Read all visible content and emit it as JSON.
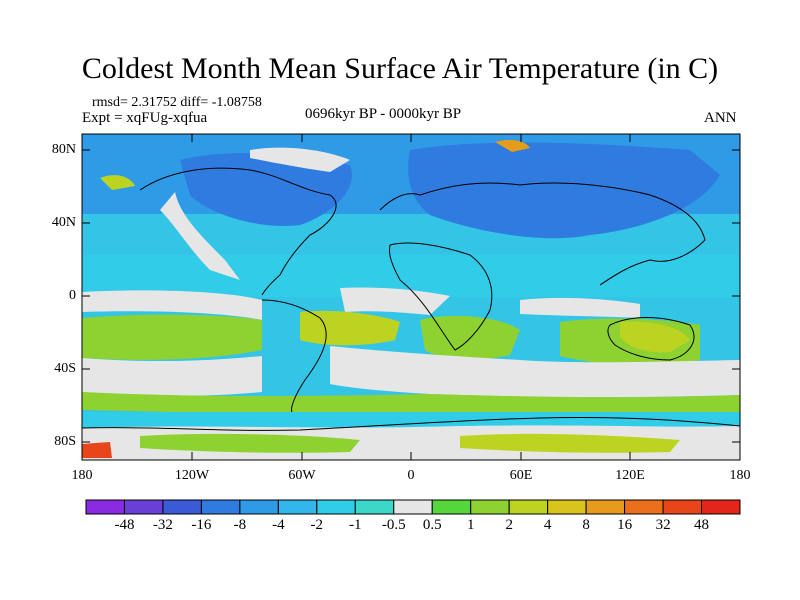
{
  "title": "Coldest Month Mean Surface Air Temperature (in C)",
  "stats": "rmsd= 2.31752  diff= -1.08758",
  "experiment": "Expt = xqFUg-xqfua",
  "period": "0696kyr BP - 0000kyr BP",
  "season": "ANN",
  "lat_ticks": [
    "80N",
    "40N",
    "0",
    "40S",
    "80S"
  ],
  "lon_ticks": [
    "180",
    "120W",
    "60W",
    "0",
    "60E",
    "120E",
    "180"
  ],
  "colorbar": {
    "labels": [
      "-48",
      "-32",
      "-16",
      "-8",
      "-4",
      "-2",
      "-1",
      "-0.5",
      "0.5",
      "1",
      "2",
      "4",
      "8",
      "16",
      "32",
      "48"
    ],
    "colors": [
      "#8a2be2",
      "#6a3fd8",
      "#3a5ad6",
      "#2f7be0",
      "#2f9ae6",
      "#33b6ec",
      "#30cce8",
      "#3ad8c8",
      "#e6e6e6",
      "#55d63a",
      "#8ed232",
      "#bcd421",
      "#d8c41a",
      "#e69c1a",
      "#ea701c",
      "#e8461a",
      "#e4261a"
    ]
  }
}
